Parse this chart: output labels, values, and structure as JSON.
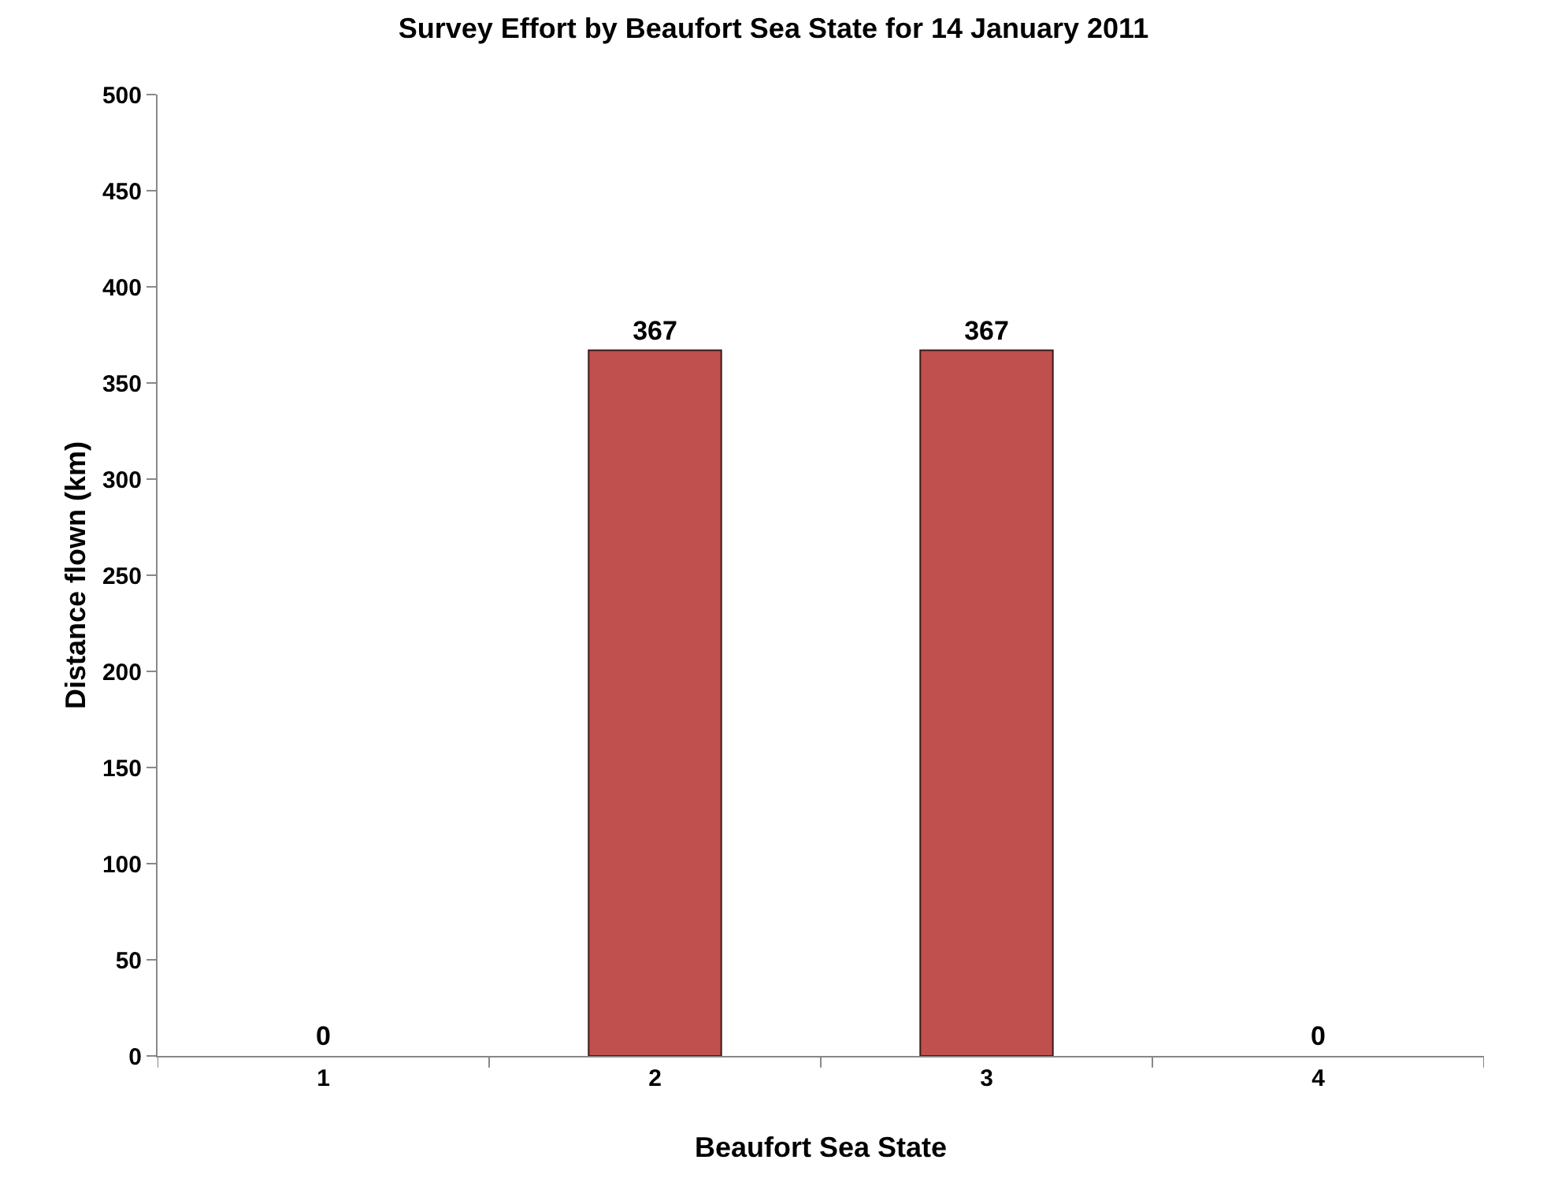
{
  "chart_data": {
    "type": "bar",
    "title": "Survey Effort by Beaufort Sea State for 14 January 2011",
    "xlabel": "Beaufort Sea State",
    "ylabel": "Distance flown (km)",
    "categories": [
      "1",
      "2",
      "3",
      "4"
    ],
    "values": [
      0,
      367,
      367,
      0
    ],
    "color": "#c0504d",
    "ylim": [
      0,
      500
    ],
    "yticks": [
      0,
      50,
      100,
      150,
      200,
      250,
      300,
      350,
      400,
      450,
      500
    ],
    "grid": false,
    "data_labels": true
  }
}
